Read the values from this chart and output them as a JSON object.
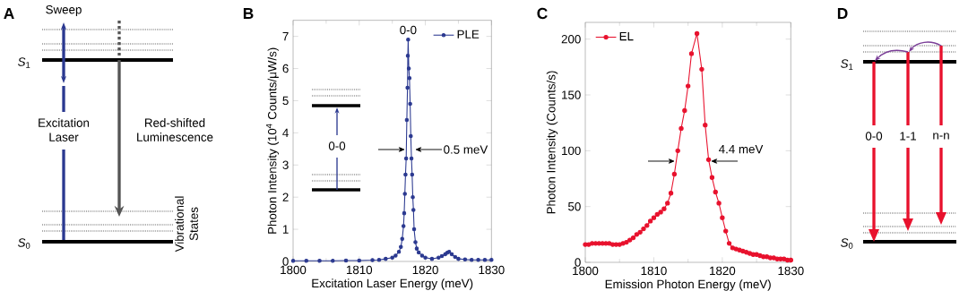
{
  "chart_data": [
    {
      "type": "other",
      "title": "A",
      "annotations": [
        "Sweep",
        "Excitation Laser",
        "Red-shifted Luminescence",
        "Vibrational States",
        "*S*$_{1}$",
        "*S*$_{0}$"
      ]
    },
    {
      "type": "line",
      "title": "B",
      "xlabel": "Excitation Laser Energy (meV)",
      "ylabel": "Photon Intensity (10$^{4}$ Counts/μW/s)",
      "xlim": [
        1800,
        1830
      ],
      "ylim": [
        0,
        7.5
      ],
      "xticks": [
        1800,
        1810,
        1820,
        1830
      ],
      "yticks": [
        0,
        1,
        2,
        3,
        4,
        5,
        6,
        7
      ],
      "x": [
        1800,
        1802,
        1804,
        1806,
        1808,
        1810,
        1812,
        1813,
        1814,
        1815,
        1815.5,
        1816,
        1816.3,
        1816.5,
        1816.7,
        1816.8,
        1816.9,
        1817.0,
        1817.1,
        1817.2,
        1817.3,
        1817.35,
        1817.4,
        1817.5,
        1817.6,
        1817.7,
        1817.8,
        1817.9,
        1818.0,
        1818.1,
        1818.2,
        1818.3,
        1818.5,
        1818.7,
        1819,
        1819.5,
        1820,
        1821,
        1822,
        1822.5,
        1823,
        1823.3,
        1823.6,
        1824,
        1824.5,
        1825,
        1826,
        1827,
        1828,
        1829,
        1830
      ],
      "series": [
        {
          "name": "PLE",
          "color": "#2b3990",
          "values": [
            0.02,
            0.02,
            0.02,
            0.02,
            0.03,
            0.03,
            0.04,
            0.05,
            0.08,
            0.12,
            0.18,
            0.3,
            0.45,
            0.7,
            1.1,
            1.5,
            2.1,
            2.7,
            3.2,
            4.4,
            5.4,
            6.4,
            6.9,
            6.0,
            5.7,
            4.9,
            3.9,
            3.2,
            2.7,
            2.0,
            1.6,
            1.0,
            0.6,
            0.4,
            0.28,
            0.18,
            0.12,
            0.08,
            0.12,
            0.17,
            0.22,
            0.27,
            0.3,
            0.22,
            0.14,
            0.08,
            0.06,
            0.05,
            0.05,
            0.05,
            0.05
          ]
        }
      ],
      "annotations": [
        {
          "text": "0-0",
          "x": 1817.4,
          "y": 6.9
        },
        "0.5 meV",
        "0-0"
      ],
      "legend": "top right",
      "marker": "circle",
      "line_style": "solid"
    },
    {
      "type": "line",
      "title": "C",
      "xlabel": "Emission Photon Energy (meV)",
      "ylabel": "Photon Intensity (Counts/s)",
      "xlim": [
        1800,
        1830
      ],
      "ylim": [
        0,
        215
      ],
      "xticks": [
        1800,
        1810,
        1820,
        1830
      ],
      "yticks": [
        0,
        50,
        100,
        150,
        200
      ],
      "x": [
        1800,
        1800.5,
        1801,
        1801.5,
        1802,
        1802.5,
        1803,
        1803.5,
        1804,
        1804.5,
        1805,
        1805.5,
        1806,
        1806.5,
        1807,
        1807.5,
        1808,
        1808.5,
        1809,
        1809.5,
        1810,
        1810.5,
        1811,
        1811.5,
        1812,
        1812.5,
        1813,
        1813.5,
        1814,
        1814.5,
        1815,
        1815.5,
        1816.3,
        1817,
        1817.5,
        1818,
        1818.5,
        1819,
        1819.5,
        1820,
        1820.5,
        1821,
        1821.5,
        1822,
        1822.5,
        1823,
        1823.5,
        1824,
        1824.5,
        1825,
        1825.5,
        1826,
        1826.5,
        1827,
        1827.5,
        1828,
        1828.5,
        1829,
        1829.5,
        1830
      ],
      "series": [
        {
          "name": "EL",
          "color": "#e8112d",
          "values": [
            16,
            16,
            17,
            17,
            17,
            17,
            17,
            17,
            16,
            16,
            16,
            17,
            18,
            20,
            22,
            25,
            27,
            30,
            33,
            37,
            40,
            43,
            45,
            48,
            53,
            62,
            79,
            100,
            120,
            136,
            158,
            187,
            205,
            173,
            123,
            92,
            76,
            63,
            53,
            40,
            28,
            17,
            13,
            12,
            11,
            10,
            9,
            8,
            7,
            7,
            6,
            5,
            5,
            4,
            4,
            3,
            3,
            3,
            2,
            2
          ]
        }
      ],
      "annotations": [
        "4.4 meV"
      ],
      "legend": "top left",
      "marker": "circle",
      "line_style": "solid"
    },
    {
      "type": "other",
      "title": "D",
      "annotations": [
        "0-0",
        "1-1",
        "n-n",
        "*S*$_{1}$",
        "*S*$_{0}$"
      ]
    }
  ]
}
